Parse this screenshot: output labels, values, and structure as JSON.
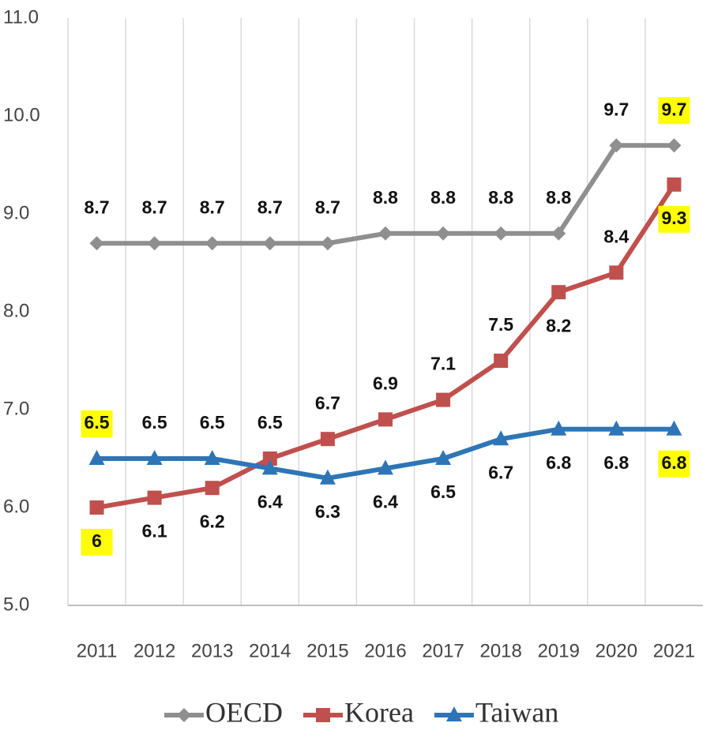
{
  "chart_data": {
    "type": "line",
    "x": [
      2011,
      2012,
      2013,
      2014,
      2015,
      2016,
      2017,
      2018,
      2019,
      2020,
      2021
    ],
    "ylim": [
      5,
      11
    ],
    "yticks": [
      {
        "value": 5,
        "label": "5.0"
      },
      {
        "value": 6,
        "label": "6.0"
      },
      {
        "value": 7,
        "label": "7.0"
      },
      {
        "value": 8,
        "label": "8.0"
      },
      {
        "value": 9,
        "label": "9.0"
      },
      {
        "value": 10,
        "label": "10.0"
      },
      {
        "value": 11,
        "label": "11.0"
      }
    ],
    "grid": "vertical",
    "legend": "bottom",
    "label_highlight": "#ffff00",
    "series": [
      {
        "name": "OECD",
        "color": "#8f8f8f",
        "marker": "diamond",
        "values": [
          8.7,
          8.7,
          8.7,
          8.7,
          8.7,
          8.8,
          8.8,
          8.8,
          8.8,
          9.7,
          9.7
        ],
        "highlighted_points": [
          10
        ]
      },
      {
        "name": "Korea",
        "color": "#c0504d",
        "marker": "square",
        "values": [
          6.0,
          6.1,
          6.2,
          6.5,
          6.7,
          6.9,
          7.1,
          7.5,
          8.2,
          8.4,
          9.3
        ],
        "highlighted_points": [
          0,
          10
        ]
      },
      {
        "name": "Taiwan",
        "color": "#2e75b6",
        "marker": "triangle",
        "values": [
          6.5,
          6.5,
          6.5,
          6.4,
          6.3,
          6.4,
          6.5,
          6.7,
          6.8,
          6.8,
          6.8
        ],
        "highlighted_points": [
          0,
          10
        ]
      }
    ]
  }
}
